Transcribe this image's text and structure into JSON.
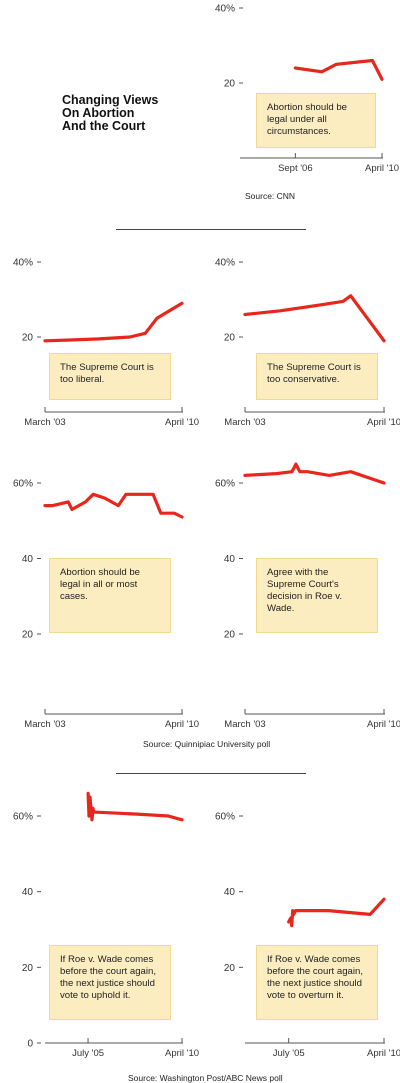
{
  "title": "Changing Views\nOn Abortion\nAnd the Court",
  "sources": {
    "cnn": "Source: CNN",
    "quinnipiac": "Source: Quinnipiac University poll",
    "wapo": "Source: Washington Post/ABC News poll"
  },
  "colors": {
    "line": "#e8261c",
    "box": "#fcedc0",
    "axis": "#555555"
  },
  "chart_data": [
    {
      "type": "line",
      "title": "Abortion should be legal under all circumstances.",
      "source": "Source: CNN",
      "ylim": [
        0,
        40
      ],
      "y_ticks": [
        {
          "v": 40,
          "label": "40%"
        },
        {
          "v": 20,
          "label": "20"
        }
      ],
      "x_ticks": [
        {
          "v": 2006.7,
          "label": "Sept '06"
        },
        {
          "v": 2010.3,
          "label": "April '10"
        }
      ],
      "xlim": [
        2004.4,
        2010.3
      ],
      "series": [
        {
          "x": [
            2006.7,
            2007.8,
            2008.4,
            2009.9,
            2010.3
          ],
          "values": [
            24,
            23,
            25,
            26,
            21
          ]
        }
      ]
    },
    {
      "type": "line",
      "title": "The Supreme Court is too liberal.",
      "ylim": [
        0,
        40
      ],
      "y_ticks": [
        {
          "v": 40,
          "label": "40%"
        },
        {
          "v": 20,
          "label": "20"
        }
      ],
      "x_ticks": [
        {
          "v": 2003.2,
          "label": "March '03"
        },
        {
          "v": 2010.3,
          "label": "April '10"
        }
      ],
      "xlim": [
        2003.2,
        2010.3
      ],
      "series": [
        {
          "x": [
            2003.2,
            2004.5,
            2006.0,
            2007.6,
            2008.4,
            2009.0,
            2010.3
          ],
          "values": [
            19,
            19.2,
            19.5,
            20,
            21,
            25,
            29
          ]
        }
      ]
    },
    {
      "type": "line",
      "title": "The Supreme Court is too conservative.",
      "ylim": [
        0,
        40
      ],
      "y_ticks": [
        {
          "v": 40,
          "label": "40%"
        },
        {
          "v": 20,
          "label": "20"
        }
      ],
      "x_ticks": [
        {
          "v": 2003.2,
          "label": "March '03"
        },
        {
          "v": 2010.3,
          "label": "April '10"
        }
      ],
      "xlim": [
        2003.2,
        2010.3
      ],
      "series": [
        {
          "x": [
            2003.2,
            2005.0,
            2007.0,
            2008.2,
            2008.6,
            2010.3
          ],
          "values": [
            26,
            27,
            28.5,
            29.5,
            31,
            19
          ]
        }
      ]
    },
    {
      "type": "line",
      "title": "Abortion should be legal in all or most cases.",
      "ylim": [
        20,
        60
      ],
      "y_ticks": [
        {
          "v": 60,
          "label": "60%"
        },
        {
          "v": 40,
          "label": "40"
        },
        {
          "v": 20,
          "label": "20"
        }
      ],
      "x_ticks": [
        {
          "v": 2003.2,
          "label": "March '03"
        },
        {
          "v": 2010.3,
          "label": "April '10"
        }
      ],
      "xlim": [
        2003.2,
        2010.3
      ],
      "series": [
        {
          "x": [
            2003.2,
            2003.6,
            2004.4,
            2004.6,
            2005.3,
            2005.7,
            2006.3,
            2007.0,
            2007.4,
            2008.2,
            2008.8,
            2009.2,
            2009.9,
            2010.3
          ],
          "values": [
            54,
            54,
            55,
            53,
            55,
            57,
            56,
            54,
            57,
            57,
            57,
            52,
            52,
            51
          ]
        }
      ]
    },
    {
      "type": "line",
      "title": "Agree with the Supreme Court's decision in Roe v. Wade.",
      "ylim": [
        20,
        60
      ],
      "y_ticks": [
        {
          "v": 60,
          "label": "60%"
        },
        {
          "v": 40,
          "label": "40"
        },
        {
          "v": 20,
          "label": "20"
        }
      ],
      "x_ticks": [
        {
          "v": 2003.2,
          "label": "March '03"
        },
        {
          "v": 2010.3,
          "label": "April '10"
        }
      ],
      "xlim": [
        2003.2,
        2010.3
      ],
      "series": [
        {
          "x": [
            2003.2,
            2004.8,
            2005.6,
            2005.8,
            2006.0,
            2006.4,
            2007.5,
            2008.6,
            2010.3
          ],
          "values": [
            62,
            62.5,
            63,
            65,
            63,
            63,
            62,
            63,
            60
          ]
        }
      ]
    },
    {
      "type": "line",
      "title": "If Roe v. Wade comes before the court again, the next justice should vote to uphold it.",
      "ylim": [
        0,
        60
      ],
      "y_ticks": [
        {
          "v": 60,
          "label": "60%"
        },
        {
          "v": 40,
          "label": "40"
        },
        {
          "v": 20,
          "label": "20"
        },
        {
          "v": 0,
          "label": "0"
        }
      ],
      "x_ticks": [
        {
          "v": 2005.5,
          "label": "July '05"
        },
        {
          "v": 2010.3,
          "label": "April '10"
        }
      ],
      "xlim": [
        2003.3,
        2010.3
      ],
      "series": [
        {
          "x": [
            2005.5,
            2005.55,
            2005.6,
            2005.7,
            2005.75,
            2005.8,
            2005.95,
            2008.0,
            2009.6,
            2010.3
          ],
          "values": [
            66,
            60,
            65,
            59,
            62,
            61,
            61,
            60.5,
            60,
            59
          ]
        }
      ]
    },
    {
      "type": "line",
      "title": "If Roe v. Wade comes before the court again, the next justice should vote to overturn it.",
      "ylim": [
        0,
        60
      ],
      "y_ticks": [
        {
          "v": 60,
          "label": "60%"
        },
        {
          "v": 40,
          "label": "40"
        },
        {
          "v": 20,
          "label": "20"
        }
      ],
      "x_ticks": [
        {
          "v": 2005.5,
          "label": "July '05"
        },
        {
          "v": 2010.3,
          "label": "April '10"
        }
      ],
      "xlim": [
        2003.3,
        2010.3
      ],
      "series": [
        {
          "x": [
            2005.5,
            2005.6,
            2005.65,
            2005.7,
            2005.75,
            2005.85,
            2007.5,
            2009.6,
            2010.3
          ],
          "values": [
            32,
            33,
            31,
            35,
            34,
            35,
            35,
            34,
            38
          ]
        }
      ]
    }
  ]
}
